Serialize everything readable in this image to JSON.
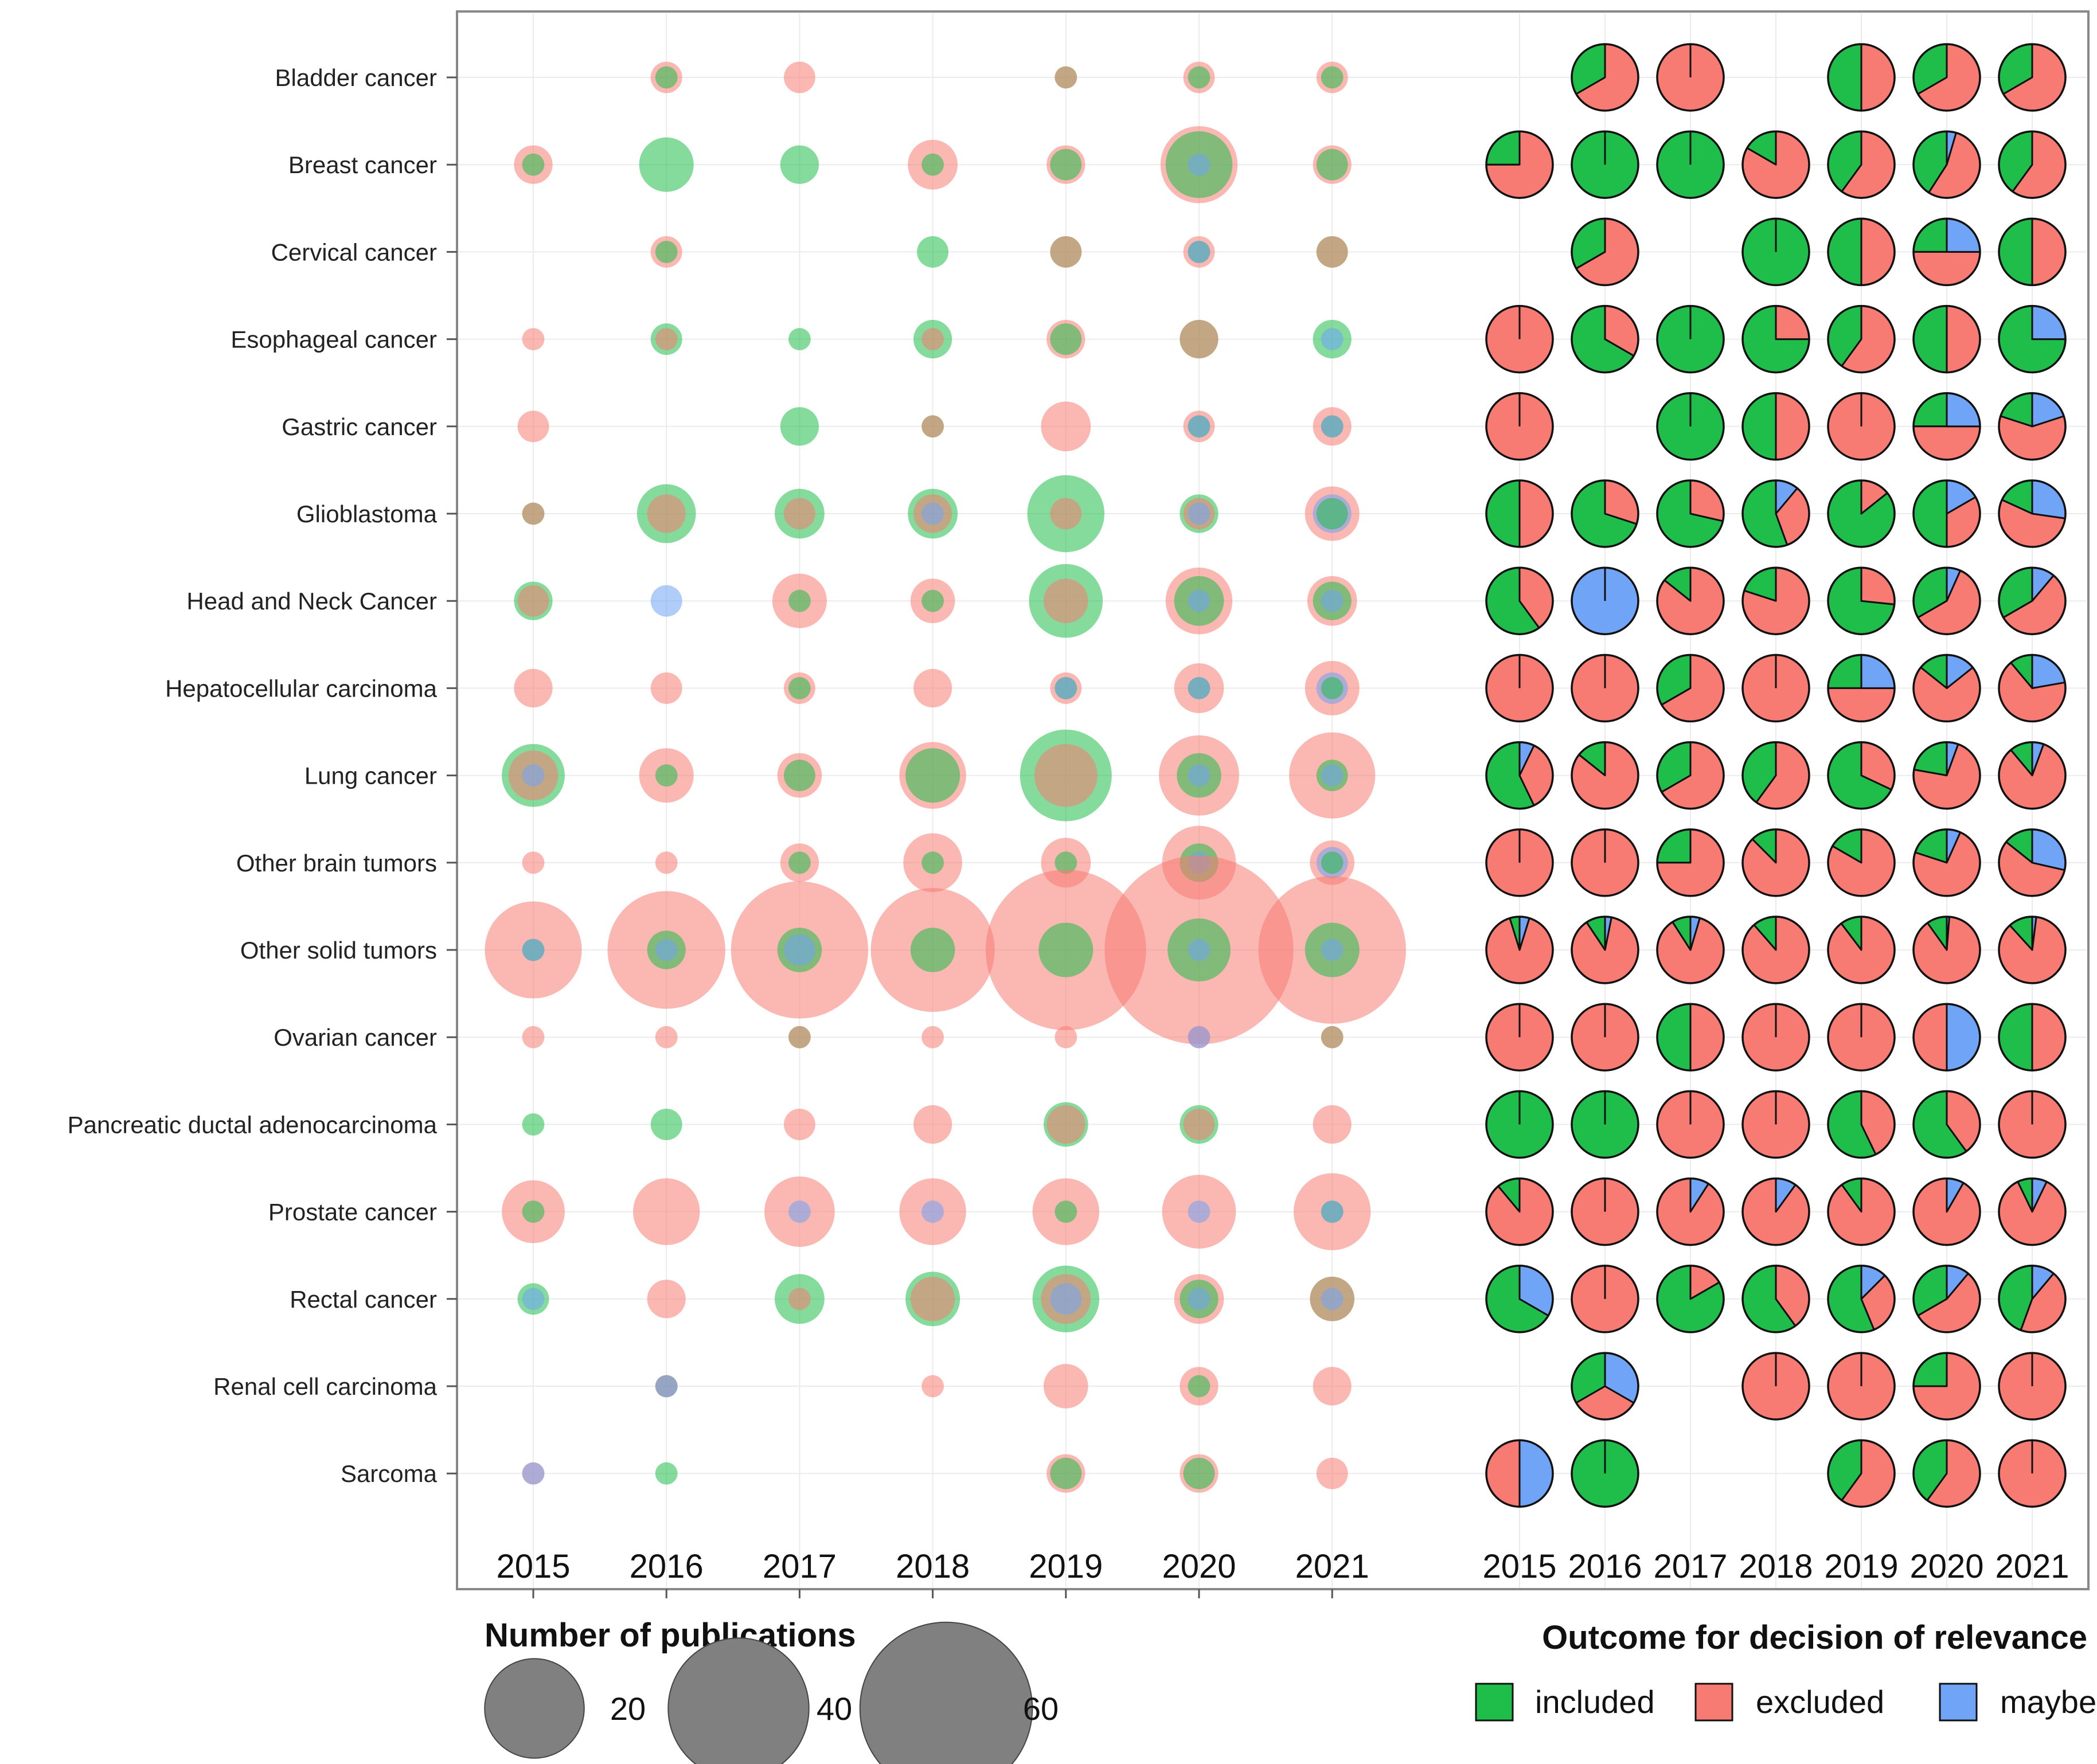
{
  "chart_data": {
    "type": "bubble-and-pie-grid",
    "categories": [
      "Bladder cancer",
      "Breast cancer",
      "Cervical cancer",
      "Esophageal cancer",
      "Gastric cancer",
      "Glioblastoma",
      "Head and Neck Cancer",
      "Hepatocellular carcinoma",
      "Lung cancer",
      "Other brain tumors",
      "Other solid tumors",
      "Ovarian cancer",
      "Pancreatic ductal adenocarcinoma",
      "Prostate cancer",
      "Rectal cancer",
      "Renal cell carcinoma",
      "Sarcoma"
    ],
    "years": [
      "2015",
      "2016",
      "2017",
      "2018",
      "2019",
      "2020",
      "2021"
    ],
    "outcomes": [
      "included",
      "excluded",
      "maybe"
    ],
    "colors": {
      "included": "#1fbe4b",
      "excluded": "#f77b72",
      "maybe": "#6fa4f6",
      "legend_bubble": "#808080"
    },
    "counts_note": "[included, excluded, maybe] number of publications per cancer type and year; null = no publications",
    "counts": [
      [
        null,
        [
          1,
          2,
          0
        ],
        [
          0,
          2,
          0
        ],
        [
          0,
          0,
          0
        ],
        [
          1,
          1,
          0
        ],
        [
          1,
          2,
          0
        ],
        [
          1,
          2,
          0
        ]
      ],
      [
        [
          1,
          3,
          0
        ],
        [
          6,
          0,
          0
        ],
        [
          3,
          0,
          0
        ],
        [
          1,
          5,
          0
        ],
        [
          2,
          3,
          0
        ],
        [
          9,
          12,
          1
        ],
        [
          2,
          3,
          0
        ]
      ],
      [
        null,
        [
          1,
          2,
          0
        ],
        null,
        [
          2,
          0,
          0
        ],
        [
          2,
          2,
          0
        ],
        [
          1,
          2,
          1
        ],
        [
          2,
          2,
          0
        ]
      ],
      [
        [
          0,
          1,
          0
        ],
        [
          2,
          1,
          0
        ],
        [
          1,
          0,
          0
        ],
        [
          3,
          1,
          0
        ],
        [
          2,
          3,
          0
        ],
        [
          3,
          3,
          0
        ],
        [
          3,
          0,
          1
        ]
      ],
      [
        [
          0,
          2,
          0
        ],
        null,
        [
          3,
          0,
          0
        ],
        [
          1,
          1,
          0
        ],
        [
          0,
          5,
          0
        ],
        [
          1,
          2,
          1
        ],
        [
          1,
          3,
          1
        ]
      ],
      [
        [
          1,
          1,
          0
        ],
        [
          7,
          3,
          0
        ],
        [
          5,
          2,
          0
        ],
        [
          5,
          3,
          1
        ],
        [
          12,
          2,
          0
        ],
        [
          3,
          2,
          1
        ],
        [
          2,
          6,
          3
        ]
      ],
      [
        [
          3,
          2,
          0
        ],
        [
          0,
          0,
          2
        ],
        [
          1,
          6,
          0
        ],
        [
          1,
          4,
          0
        ],
        [
          11,
          4,
          0
        ],
        [
          5,
          9,
          1
        ],
        [
          3,
          5,
          1
        ]
      ],
      [
        [
          0,
          3,
          0
        ],
        [
          0,
          2,
          0
        ],
        [
          1,
          2,
          0
        ],
        [
          0,
          3,
          0
        ],
        [
          1,
          2,
          1
        ],
        [
          1,
          5,
          1
        ],
        [
          1,
          6,
          2
        ]
      ],
      [
        [
          8,
          5,
          1
        ],
        [
          1,
          6,
          0
        ],
        [
          2,
          4,
          0
        ],
        [
          6,
          9,
          0
        ],
        [
          17,
          8,
          0
        ],
        [
          4,
          13,
          1
        ],
        [
          2,
          15,
          1
        ]
      ],
      [
        [
          0,
          1,
          0
        ],
        [
          0,
          1,
          0
        ],
        [
          1,
          3,
          0
        ],
        [
          1,
          7,
          0
        ],
        [
          1,
          5,
          0
        ],
        [
          3,
          11,
          1
        ],
        [
          1,
          4,
          2
        ]
      ],
      [
        [
          1,
          19,
          1
        ],
        [
          3,
          28,
          1
        ],
        [
          4,
          38,
          2
        ],
        [
          4,
          31,
          0
        ],
        [
          6,
          52,
          0
        ],
        [
          8,
          72,
          1
        ],
        [
          6,
          44,
          1
        ]
      ],
      [
        [
          0,
          1,
          0
        ],
        [
          0,
          1,
          0
        ],
        [
          1,
          1,
          0
        ],
        [
          0,
          1,
          0
        ],
        [
          0,
          1,
          0
        ],
        [
          0,
          1,
          1
        ],
        [
          1,
          1,
          0
        ]
      ],
      [
        [
          1,
          0,
          0
        ],
        [
          2,
          0,
          0
        ],
        [
          0,
          2,
          0
        ],
        [
          0,
          3,
          0
        ],
        [
          4,
          3,
          0
        ],
        [
          3,
          2,
          0
        ],
        [
          0,
          3,
          0
        ]
      ],
      [
        [
          1,
          8,
          0
        ],
        [
          0,
          9,
          0
        ],
        [
          0,
          10,
          1
        ],
        [
          0,
          9,
          1
        ],
        [
          1,
          9,
          0
        ],
        [
          0,
          11,
          1
        ],
        [
          1,
          12,
          1
        ]
      ],
      [
        [
          2,
          0,
          1
        ],
        [
          0,
          3,
          0
        ],
        [
          5,
          1,
          0
        ],
        [
          6,
          4,
          0
        ],
        [
          9,
          5,
          2
        ],
        [
          3,
          5,
          1
        ],
        [
          4,
          4,
          1
        ]
      ],
      [
        null,
        [
          1,
          1,
          1
        ],
        null,
        [
          0,
          1,
          0
        ],
        [
          0,
          4,
          0
        ],
        [
          1,
          3,
          0
        ],
        [
          0,
          3,
          0
        ]
      ],
      [
        [
          0,
          1,
          1
        ],
        [
          1,
          0,
          0
        ],
        null,
        null,
        [
          2,
          3,
          0
        ],
        [
          2,
          3,
          0
        ],
        [
          0,
          2,
          0
        ]
      ]
    ],
    "size_legend": {
      "title": "Number of publications",
      "values": [
        20,
        40,
        60
      ]
    },
    "color_legend": {
      "title": "Outcome for decision of relevance",
      "labels": [
        "included",
        "excluded",
        "maybe"
      ]
    },
    "xlabel": "",
    "ylabel": ""
  }
}
